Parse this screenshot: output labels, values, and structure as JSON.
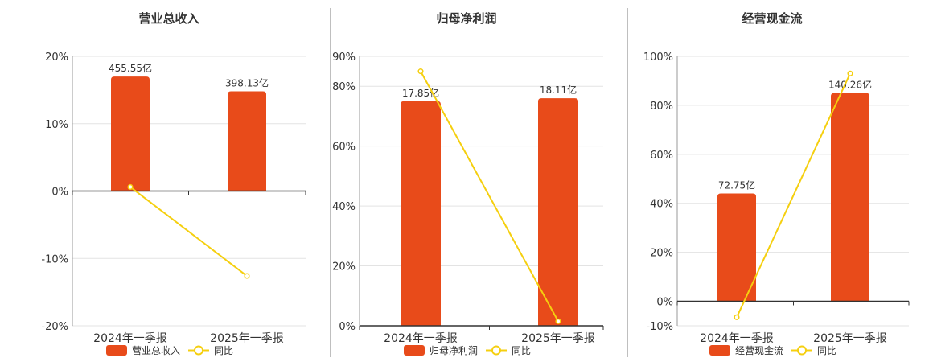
{
  "colors": {
    "bar": "#e84b1a",
    "line": "#f5cf0f",
    "grid": "#e3e3e3",
    "axis": "#333333",
    "text": "#333333"
  },
  "legend": {
    "bar_icon": "bar-swatch",
    "line_icon": "line-circle-marker"
  },
  "chart_data": [
    {
      "type": "bar",
      "title": "营业总收入",
      "categories": [
        "2024年一季报",
        "2025年一季报"
      ],
      "series": [
        {
          "name": "营业总收入",
          "kind": "bar",
          "values": [
            17,
            14.8
          ],
          "data_labels": [
            "455.55亿",
            "398.13亿"
          ]
        },
        {
          "name": "同比",
          "kind": "line",
          "values": [
            0.6,
            -12.6
          ]
        }
      ],
      "yaxis": {
        "ticks": [
          20,
          10,
          0,
          -10,
          -20
        ],
        "tick_labels": [
          "20%",
          "10%",
          "0%",
          "-10%",
          "-20%"
        ],
        "ylim": [
          -20,
          20
        ]
      },
      "grid": true,
      "legend_position": "bottom"
    },
    {
      "type": "bar",
      "title": "归母净利润",
      "categories": [
        "2024年一季报",
        "2025年一季报"
      ],
      "series": [
        {
          "name": "归母净利润",
          "kind": "bar",
          "values": [
            75,
            76
          ],
          "data_labels": [
            "17.85亿",
            "18.11亿"
          ]
        },
        {
          "name": "同比",
          "kind": "line",
          "values": [
            85,
            1.5
          ]
        }
      ],
      "yaxis": {
        "ticks": [
          90,
          80,
          60,
          40,
          20,
          0
        ],
        "tick_labels": [
          "90%",
          "80%",
          "60%",
          "40%",
          "20%",
          "0%"
        ],
        "ylim": [
          0,
          90
        ]
      },
      "grid": true,
      "legend_position": "bottom"
    },
    {
      "type": "bar",
      "title": "经营现金流",
      "categories": [
        "2024年一季报",
        "2025年一季报"
      ],
      "series": [
        {
          "name": "经营现金流",
          "kind": "bar",
          "values": [
            44,
            85
          ],
          "data_labels": [
            "72.75亿",
            "140.26亿"
          ]
        },
        {
          "name": "同比",
          "kind": "line",
          "values": [
            -6.5,
            93
          ]
        }
      ],
      "yaxis": {
        "ticks": [
          100,
          80,
          60,
          40,
          20,
          0,
          -10
        ],
        "tick_labels": [
          "100%",
          "80%",
          "60%",
          "40%",
          "20%",
          "0%",
          "-10%"
        ],
        "ylim": [
          -10,
          100
        ]
      },
      "grid": true,
      "legend_position": "bottom"
    }
  ]
}
